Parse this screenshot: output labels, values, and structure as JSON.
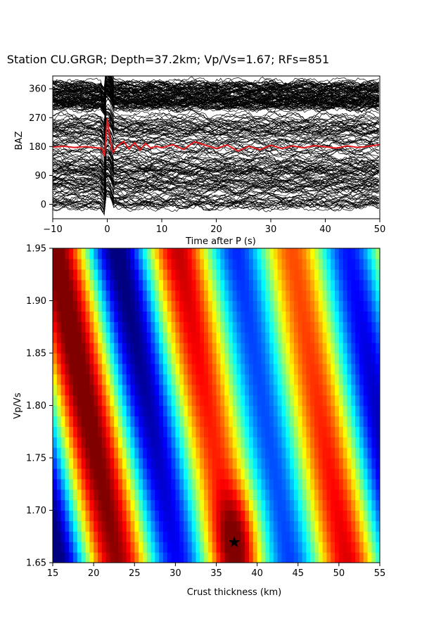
{
  "chart_data": [
    {
      "type": "line",
      "title": "Station CU.GRGR; Depth=37.2km; Vp/Vs=1.67; RFs=851",
      "xlabel": "Time after P (s)",
      "ylabel": "BAZ",
      "xlim": [
        -10,
        50
      ],
      "ylim": [
        -45,
        400
      ],
      "xticks": [
        -10,
        0,
        10,
        20,
        30,
        40,
        50
      ],
      "yticks": [
        0,
        90,
        180,
        270,
        360
      ],
      "xtick_labels": [
        "−10",
        "0",
        "10",
        "20",
        "30",
        "40",
        "50"
      ],
      "ytick_labels": [
        "0",
        "90",
        "180",
        "270",
        "360"
      ],
      "grid": false,
      "traces_color": "#000000",
      "stack_color": "#e41a1c",
      "stack_series": {
        "x": [
          -10,
          -8,
          -6,
          -4,
          -2,
          -1,
          -0.5,
          0,
          0.5,
          1,
          2,
          3,
          4,
          5,
          6,
          7,
          8,
          9,
          10,
          12,
          14,
          16,
          18,
          20,
          22,
          24,
          26,
          28,
          30,
          32,
          34,
          36,
          38,
          40,
          42,
          44,
          46,
          48,
          50
        ],
        "y": [
          178,
          181,
          177,
          180,
          176,
          175,
          150,
          268,
          200,
          162,
          183,
          196,
          172,
          192,
          169,
          190,
          175,
          181,
          176,
          186,
          171,
          195,
          184,
          174,
          185,
          166,
          181,
          170,
          184,
          174,
          182,
          176,
          183,
          179,
          175,
          182,
          177,
          181,
          186
        ]
      }
    },
    {
      "type": "heatmap",
      "xlabel": "Crust thickness (km)",
      "ylabel": "Vp/Vs",
      "xlim": [
        15,
        55
      ],
      "ylim": [
        1.65,
        1.95
      ],
      "xticks": [
        15,
        20,
        25,
        30,
        35,
        40,
        45,
        50,
        55
      ],
      "yticks": [
        1.65,
        1.7,
        1.75,
        1.8,
        1.85,
        1.9,
        1.95
      ],
      "xtick_labels": [
        "15",
        "20",
        "25",
        "30",
        "35",
        "40",
        "45",
        "50",
        "55"
      ],
      "ytick_labels": [
        "1.65",
        "1.70",
        "1.75",
        "1.80",
        "1.85",
        "1.90",
        "1.95"
      ],
      "colormap": "jet",
      "best_fit": {
        "thickness": 37.2,
        "vpvs": 1.67,
        "marker": "star"
      }
    }
  ]
}
